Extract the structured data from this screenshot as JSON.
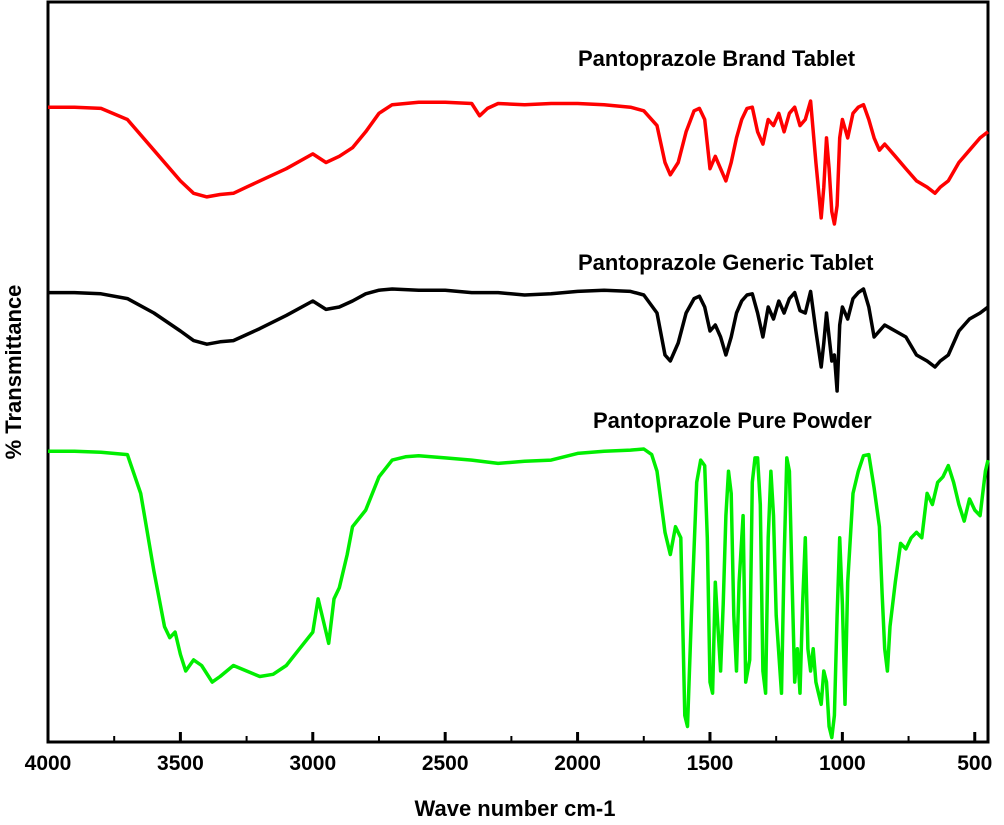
{
  "chart_data": {
    "type": "line",
    "title": "",
    "xlabel": "Wave number cm-1",
    "ylabel": "% Transmittance",
    "xlim": [
      4000,
      450
    ],
    "x_reversed": true,
    "x_ticks": [
      4000,
      3500,
      3000,
      2500,
      2000,
      1500,
      1000,
      500
    ],
    "y_ticks_visible": false,
    "grid": false,
    "legend": "none",
    "series": [
      {
        "name": "Pantoprazole Brand Tablet",
        "color": "#ff0000",
        "points": [
          [
            4000,
            0.5
          ],
          [
            3900,
            0.5
          ],
          [
            3800,
            0.6
          ],
          [
            3700,
            1.5
          ],
          [
            3600,
            4.0
          ],
          [
            3500,
            6.5
          ],
          [
            3450,
            7.5
          ],
          [
            3400,
            7.8
          ],
          [
            3350,
            7.6
          ],
          [
            3300,
            7.5
          ],
          [
            3250,
            7.0
          ],
          [
            3200,
            6.5
          ],
          [
            3100,
            5.5
          ],
          [
            3000,
            4.3
          ],
          [
            2950,
            5.0
          ],
          [
            2900,
            4.5
          ],
          [
            2850,
            3.8
          ],
          [
            2800,
            2.5
          ],
          [
            2750,
            1.0
          ],
          [
            2700,
            0.3
          ],
          [
            2600,
            0.1
          ],
          [
            2500,
            0.1
          ],
          [
            2400,
            0.2
          ],
          [
            2370,
            1.2
          ],
          [
            2340,
            0.6
          ],
          [
            2300,
            0.2
          ],
          [
            2200,
            0.3
          ],
          [
            2100,
            0.2
          ],
          [
            2000,
            0.2
          ],
          [
            1900,
            0.3
          ],
          [
            1800,
            0.5
          ],
          [
            1750,
            0.8
          ],
          [
            1700,
            2.0
          ],
          [
            1670,
            5.0
          ],
          [
            1650,
            6.0
          ],
          [
            1620,
            5.0
          ],
          [
            1590,
            2.5
          ],
          [
            1560,
            0.8
          ],
          [
            1540,
            0.6
          ],
          [
            1520,
            1.5
          ],
          [
            1500,
            5.5
          ],
          [
            1480,
            4.5
          ],
          [
            1460,
            5.5
          ],
          [
            1440,
            6.5
          ],
          [
            1420,
            5.0
          ],
          [
            1400,
            3.0
          ],
          [
            1380,
            1.5
          ],
          [
            1360,
            0.6
          ],
          [
            1340,
            0.5
          ],
          [
            1320,
            2.5
          ],
          [
            1300,
            3.5
          ],
          [
            1280,
            1.5
          ],
          [
            1260,
            2.0
          ],
          [
            1240,
            1.0
          ],
          [
            1220,
            2.5
          ],
          [
            1200,
            1.0
          ],
          [
            1180,
            0.5
          ],
          [
            1160,
            2.0
          ],
          [
            1140,
            1.5
          ],
          [
            1120,
            0.0
          ],
          [
            1100,
            5.0
          ],
          [
            1080,
            9.5
          ],
          [
            1070,
            7.0
          ],
          [
            1060,
            3.0
          ],
          [
            1050,
            5.5
          ],
          [
            1040,
            9.0
          ],
          [
            1030,
            10.0
          ],
          [
            1020,
            8.5
          ],
          [
            1010,
            3.0
          ],
          [
            1000,
            1.5
          ],
          [
            980,
            3.0
          ],
          [
            960,
            1.0
          ],
          [
            940,
            0.5
          ],
          [
            920,
            0.3
          ],
          [
            900,
            1.5
          ],
          [
            880,
            3.0
          ],
          [
            860,
            4.0
          ],
          [
            840,
            3.5
          ],
          [
            800,
            4.5
          ],
          [
            760,
            5.5
          ],
          [
            720,
            6.5
          ],
          [
            680,
            7.0
          ],
          [
            650,
            7.5
          ],
          [
            630,
            7.0
          ],
          [
            600,
            6.5
          ],
          [
            560,
            5.0
          ],
          [
            520,
            4.0
          ],
          [
            480,
            3.0
          ],
          [
            450,
            2.5
          ]
        ]
      },
      {
        "name": "Pantoprazole Generic Tablet",
        "color": "#000000",
        "points": [
          [
            4000,
            0.3
          ],
          [
            3900,
            0.3
          ],
          [
            3800,
            0.4
          ],
          [
            3700,
            0.8
          ],
          [
            3600,
            2.0
          ],
          [
            3500,
            3.5
          ],
          [
            3450,
            4.3
          ],
          [
            3400,
            4.6
          ],
          [
            3350,
            4.4
          ],
          [
            3300,
            4.3
          ],
          [
            3250,
            3.8
          ],
          [
            3200,
            3.3
          ],
          [
            3100,
            2.2
          ],
          [
            3000,
            1.0
          ],
          [
            2950,
            1.7
          ],
          [
            2900,
            1.5
          ],
          [
            2850,
            1.0
          ],
          [
            2800,
            0.4
          ],
          [
            2750,
            0.1
          ],
          [
            2700,
            0.0
          ],
          [
            2600,
            0.1
          ],
          [
            2500,
            0.1
          ],
          [
            2400,
            0.3
          ],
          [
            2300,
            0.3
          ],
          [
            2200,
            0.5
          ],
          [
            2100,
            0.4
          ],
          [
            2000,
            0.2
          ],
          [
            1900,
            0.1
          ],
          [
            1800,
            0.2
          ],
          [
            1750,
            0.5
          ],
          [
            1700,
            2.0
          ],
          [
            1670,
            5.5
          ],
          [
            1650,
            6.0
          ],
          [
            1620,
            4.5
          ],
          [
            1590,
            2.0
          ],
          [
            1560,
            0.8
          ],
          [
            1540,
            0.6
          ],
          [
            1520,
            1.5
          ],
          [
            1500,
            3.5
          ],
          [
            1480,
            3.0
          ],
          [
            1460,
            4.0
          ],
          [
            1440,
            5.5
          ],
          [
            1420,
            4.0
          ],
          [
            1400,
            2.0
          ],
          [
            1380,
            1.0
          ],
          [
            1360,
            0.5
          ],
          [
            1340,
            0.4
          ],
          [
            1320,
            2.0
          ],
          [
            1300,
            4.0
          ],
          [
            1280,
            1.5
          ],
          [
            1260,
            2.5
          ],
          [
            1240,
            1.0
          ],
          [
            1220,
            2.0
          ],
          [
            1200,
            0.8
          ],
          [
            1180,
            0.3
          ],
          [
            1160,
            1.8
          ],
          [
            1140,
            2.0
          ],
          [
            1120,
            0.2
          ],
          [
            1100,
            3.5
          ],
          [
            1080,
            6.5
          ],
          [
            1070,
            4.5
          ],
          [
            1060,
            2.0
          ],
          [
            1050,
            4.0
          ],
          [
            1040,
            6.0
          ],
          [
            1030,
            5.5
          ],
          [
            1020,
            8.5
          ],
          [
            1010,
            3.0
          ],
          [
            1000,
            1.5
          ],
          [
            980,
            2.5
          ],
          [
            960,
            0.8
          ],
          [
            940,
            0.3
          ],
          [
            920,
            0.0
          ],
          [
            900,
            1.5
          ],
          [
            880,
            4.0
          ],
          [
            860,
            3.5
          ],
          [
            840,
            3.0
          ],
          [
            800,
            3.5
          ],
          [
            760,
            4.0
          ],
          [
            720,
            5.5
          ],
          [
            680,
            6.0
          ],
          [
            650,
            6.5
          ],
          [
            630,
            6.0
          ],
          [
            600,
            5.5
          ],
          [
            560,
            3.5
          ],
          [
            520,
            2.5
          ],
          [
            480,
            2.0
          ],
          [
            450,
            1.5
          ]
        ]
      },
      {
        "name": "Pantoprazole Pure Powder",
        "color": "#00ee00",
        "points": [
          [
            4000,
            0.2
          ],
          [
            3900,
            0.2
          ],
          [
            3800,
            0.3
          ],
          [
            3700,
            0.5
          ],
          [
            3650,
            4.0
          ],
          [
            3600,
            11.0
          ],
          [
            3560,
            16.0
          ],
          [
            3540,
            17.0
          ],
          [
            3520,
            16.5
          ],
          [
            3500,
            18.5
          ],
          [
            3480,
            20.0
          ],
          [
            3450,
            19.0
          ],
          [
            3420,
            19.5
          ],
          [
            3380,
            21.0
          ],
          [
            3350,
            20.5
          ],
          [
            3300,
            19.5
          ],
          [
            3250,
            20.0
          ],
          [
            3200,
            20.5
          ],
          [
            3150,
            20.3
          ],
          [
            3100,
            19.5
          ],
          [
            3050,
            18.0
          ],
          [
            3000,
            16.5
          ],
          [
            2980,
            13.5
          ],
          [
            2960,
            15.5
          ],
          [
            2940,
            17.5
          ],
          [
            2920,
            13.5
          ],
          [
            2900,
            12.5
          ],
          [
            2870,
            9.5
          ],
          [
            2850,
            7.0
          ],
          [
            2800,
            5.5
          ],
          [
            2750,
            2.5
          ],
          [
            2700,
            1.0
          ],
          [
            2650,
            0.7
          ],
          [
            2600,
            0.6
          ],
          [
            2500,
            0.8
          ],
          [
            2400,
            1.0
          ],
          [
            2300,
            1.3
          ],
          [
            2200,
            1.1
          ],
          [
            2100,
            1.0
          ],
          [
            2000,
            0.4
          ],
          [
            1900,
            0.2
          ],
          [
            1800,
            0.1
          ],
          [
            1750,
            0.0
          ],
          [
            1720,
            0.5
          ],
          [
            1700,
            2.0
          ],
          [
            1670,
            7.5
          ],
          [
            1650,
            9.5
          ],
          [
            1630,
            7.0
          ],
          [
            1610,
            8.0
          ],
          [
            1595,
            24.0
          ],
          [
            1585,
            25.0
          ],
          [
            1570,
            15.0
          ],
          [
            1550,
            3.0
          ],
          [
            1535,
            1.0
          ],
          [
            1520,
            1.5
          ],
          [
            1510,
            8.0
          ],
          [
            1500,
            21.0
          ],
          [
            1490,
            22.0
          ],
          [
            1480,
            12.0
          ],
          [
            1470,
            16.0
          ],
          [
            1460,
            20.0
          ],
          [
            1450,
            14.0
          ],
          [
            1440,
            6.0
          ],
          [
            1430,
            2.0
          ],
          [
            1420,
            4.0
          ],
          [
            1410,
            15.0
          ],
          [
            1400,
            20.0
          ],
          [
            1390,
            12.0
          ],
          [
            1375,
            6.0
          ],
          [
            1365,
            21.0
          ],
          [
            1350,
            19.0
          ],
          [
            1340,
            3.0
          ],
          [
            1330,
            0.8
          ],
          [
            1320,
            0.8
          ],
          [
            1310,
            5.0
          ],
          [
            1300,
            20.0
          ],
          [
            1290,
            22.0
          ],
          [
            1280,
            8.0
          ],
          [
            1270,
            2.0
          ],
          [
            1260,
            6.0
          ],
          [
            1250,
            15.0
          ],
          [
            1230,
            22.0
          ],
          [
            1220,
            10.0
          ],
          [
            1210,
            0.8
          ],
          [
            1200,
            2.0
          ],
          [
            1190,
            12.0
          ],
          [
            1180,
            21.0
          ],
          [
            1170,
            18.0
          ],
          [
            1160,
            22.0
          ],
          [
            1150,
            14.0
          ],
          [
            1140,
            8.0
          ],
          [
            1130,
            18.0
          ],
          [
            1120,
            20.0
          ],
          [
            1110,
            18.0
          ],
          [
            1100,
            21.0
          ],
          [
            1090,
            22.0
          ],
          [
            1080,
            23.0
          ],
          [
            1070,
            20.0
          ],
          [
            1060,
            21.0
          ],
          [
            1050,
            25.0
          ],
          [
            1040,
            26.0
          ],
          [
            1030,
            24.0
          ],
          [
            1020,
            15.0
          ],
          [
            1010,
            8.0
          ],
          [
            1000,
            14.0
          ],
          [
            990,
            23.0
          ],
          [
            980,
            12.0
          ],
          [
            960,
            4.0
          ],
          [
            940,
            2.0
          ],
          [
            920,
            0.6
          ],
          [
            900,
            0.5
          ],
          [
            880,
            3.5
          ],
          [
            860,
            7.0
          ],
          [
            850,
            13.0
          ],
          [
            840,
            18.0
          ],
          [
            830,
            20.0
          ],
          [
            820,
            16.0
          ],
          [
            800,
            12.0
          ],
          [
            780,
            8.5
          ],
          [
            760,
            9.0
          ],
          [
            740,
            8.0
          ],
          [
            720,
            7.5
          ],
          [
            700,
            8.0
          ],
          [
            680,
            4.0
          ],
          [
            660,
            5.0
          ],
          [
            640,
            3.0
          ],
          [
            620,
            2.5
          ],
          [
            600,
            1.5
          ],
          [
            580,
            3.0
          ],
          [
            560,
            5.0
          ],
          [
            540,
            6.5
          ],
          [
            520,
            4.5
          ],
          [
            500,
            5.5
          ],
          [
            480,
            6.0
          ],
          [
            460,
            2.0
          ],
          [
            450,
            1.0
          ]
        ]
      }
    ]
  }
}
